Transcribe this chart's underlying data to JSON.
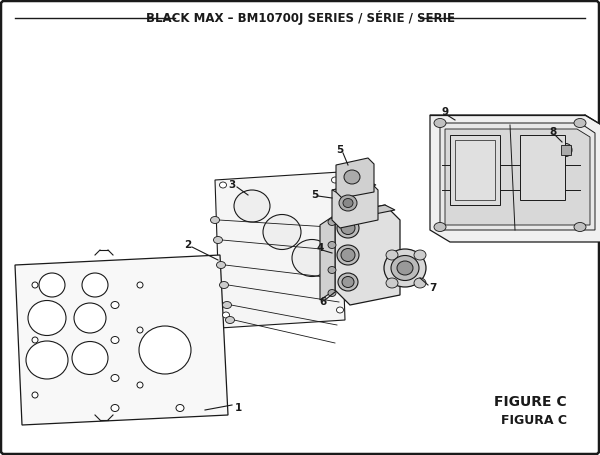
{
  "title": "BLACK MAX – BM10700J SERIES / SÉRIE / SERIE",
  "figure_label": "FIGURE C",
  "figura_label": "FIGURA C",
  "bg_color": "#ffffff",
  "lc": "#1a1a1a",
  "title_fontsize": 8.5,
  "fig_label_fontsize": 10
}
